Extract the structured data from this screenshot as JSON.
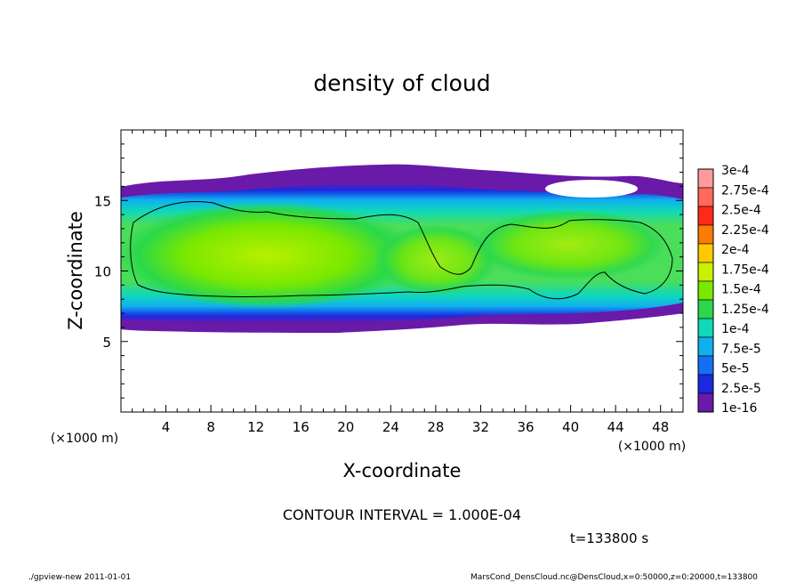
{
  "chart_data": {
    "type": "heatmap",
    "title": "density of cloud",
    "xlabel": "X-coordinate",
    "ylabel": "Z-coordinate",
    "x_unit": "(×1000 m)",
    "y_unit": "(×1000 m)",
    "xlim": [
      0,
      50
    ],
    "ylim": [
      0,
      20
    ],
    "x_ticks": [
      4,
      8,
      12,
      16,
      20,
      24,
      28,
      32,
      36,
      40,
      44,
      48
    ],
    "y_ticks": [
      5,
      10,
      15
    ],
    "colorbar": {
      "labels": [
        "3e-4",
        "2.75e-4",
        "2.5e-4",
        "2.25e-4",
        "2e-4",
        "1.75e-4",
        "1.5e-4",
        "1.25e-4",
        "1e-4",
        "7.5e-5",
        "5e-5",
        "2.5e-5",
        "1e-16"
      ],
      "colors": [
        "#ff9a9a",
        "#ff6a5a",
        "#ff2a1a",
        "#ff7a00",
        "#ffc800",
        "#c8f000",
        "#7ae800",
        "#2ad84a",
        "#10d8b8",
        "#10b0f0",
        "#1470f0",
        "#1a2ae0",
        "#6a1aa8"
      ]
    },
    "cloud_layer": {
      "z_bottom": 6.2,
      "z_top": 16.2,
      "core_z_range": [
        8,
        15
      ]
    },
    "contour_interval": "CONTOUR INTERVAL = 1.000E-04",
    "time_label": "t=133800 s"
  },
  "footer": {
    "left": "./gpview-new   2011-01-01",
    "right": "MarsCond_DensCloud.nc@DensCloud,x=0:50000,z=0:20000,t=133800"
  }
}
